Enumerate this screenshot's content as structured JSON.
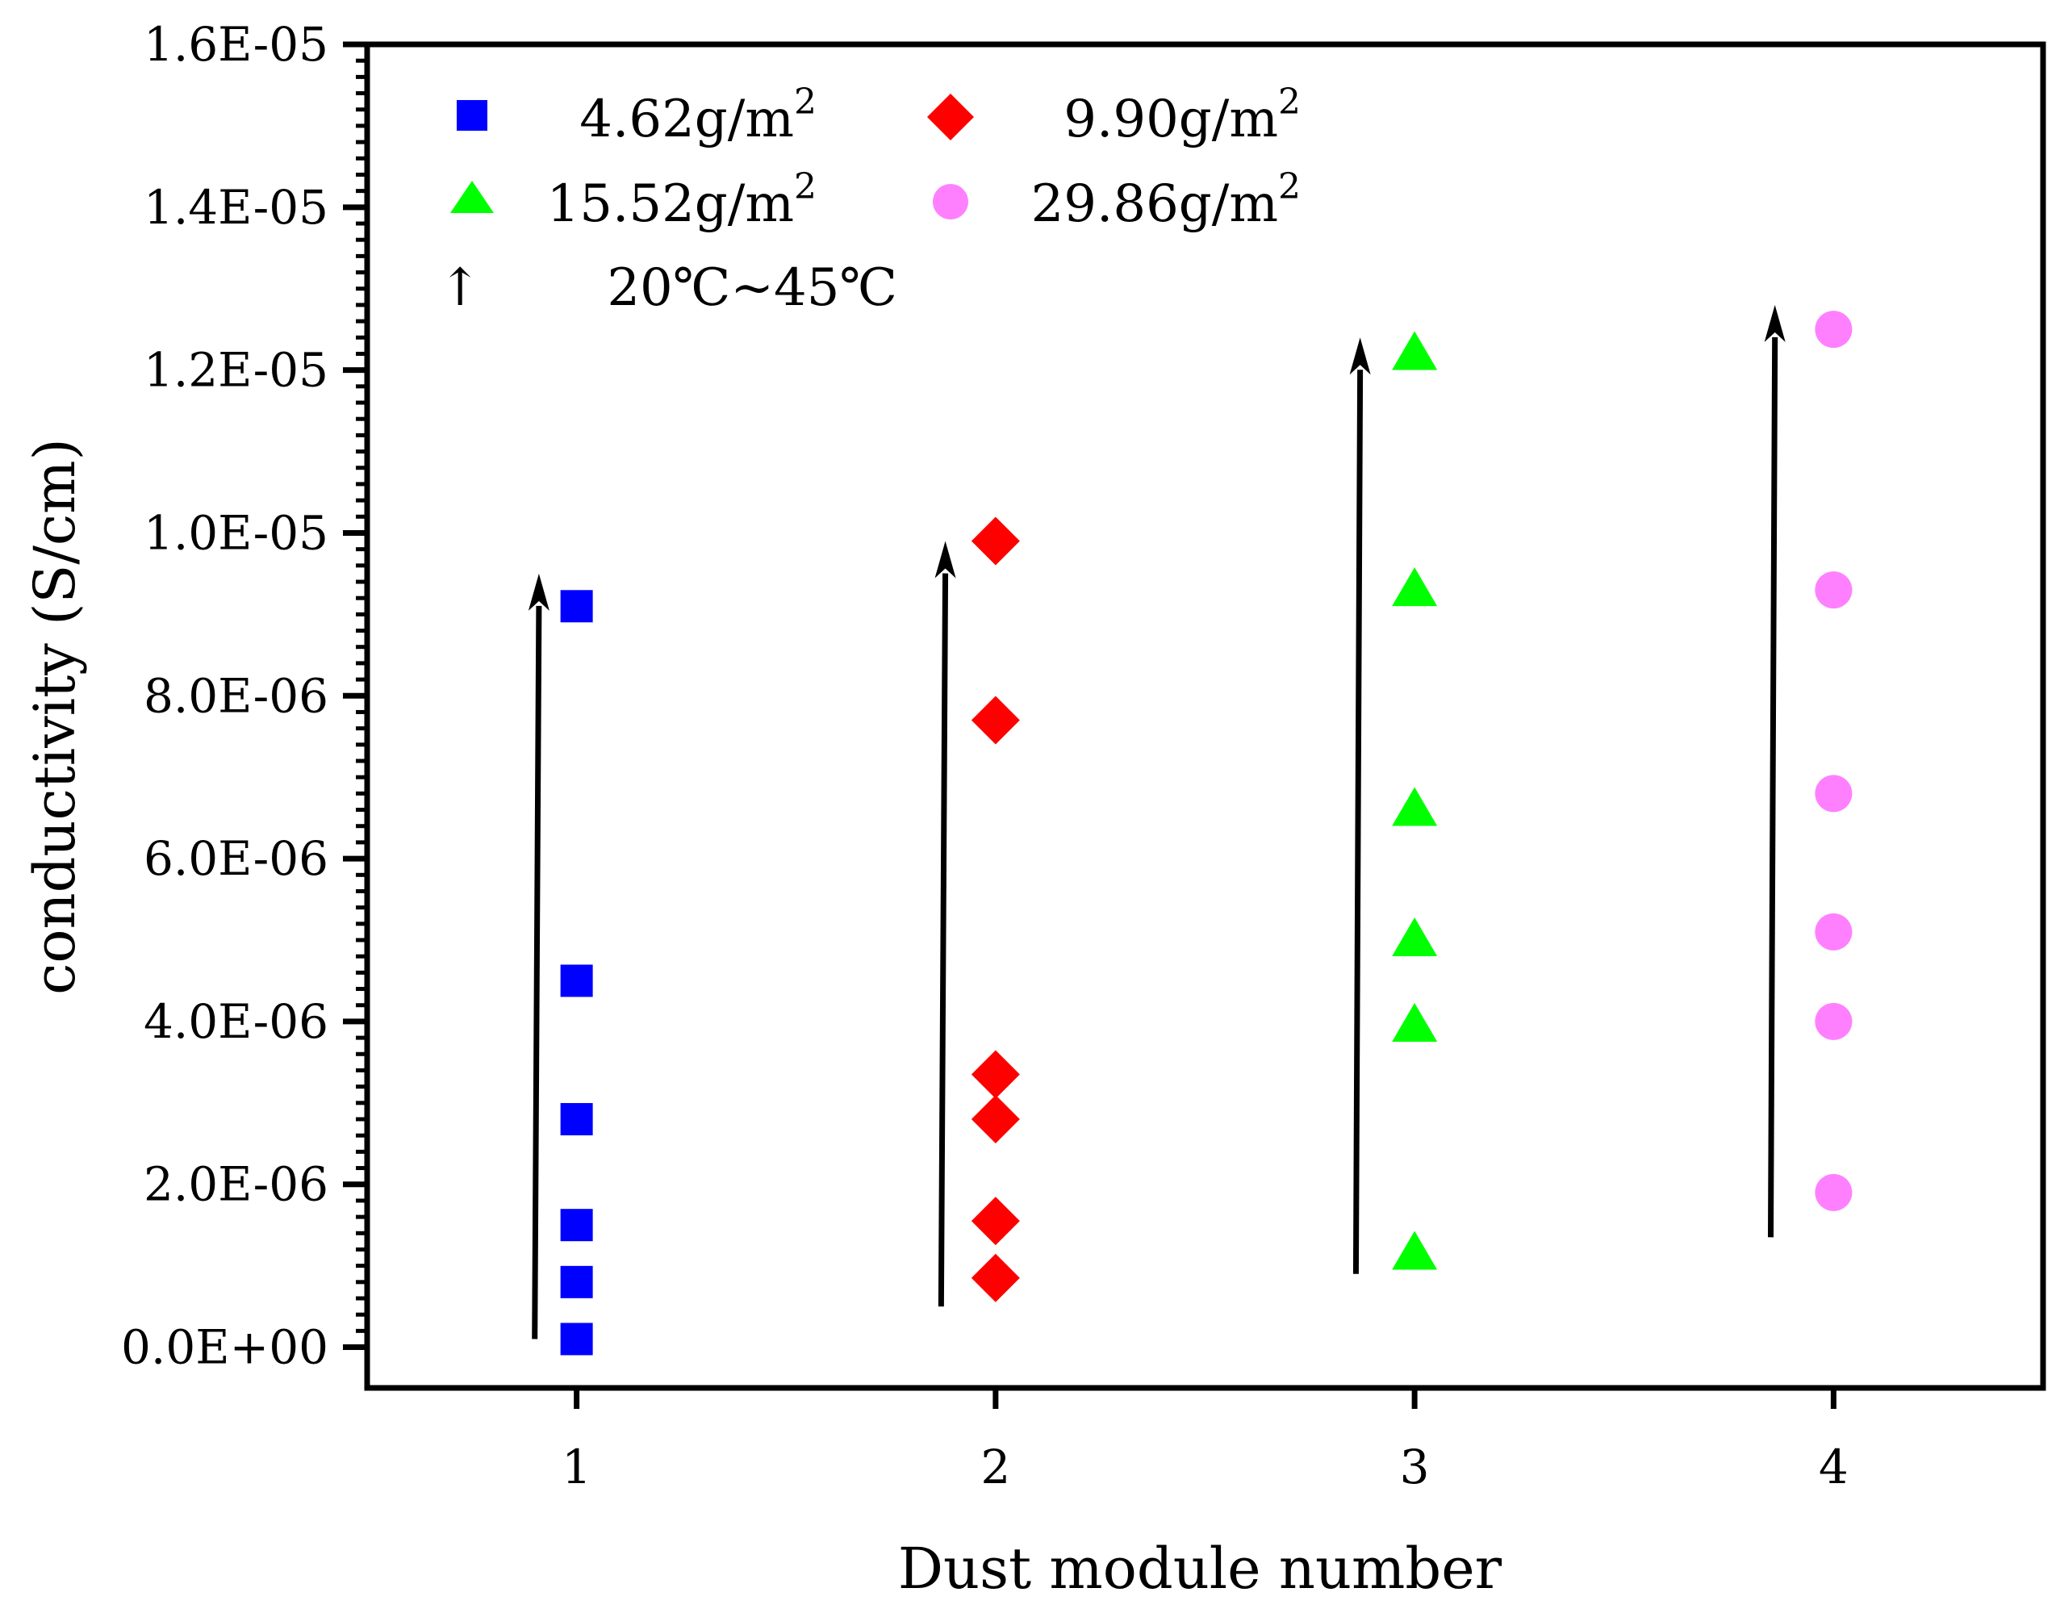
{
  "chart_data": {
    "type": "scatter",
    "title": "",
    "xlabel": "Dust module number",
    "ylabel": "conductivity (S/cm)",
    "xlim": [
      0.5,
      4.5
    ],
    "ylim": [
      -5e-07,
      1.6e-05
    ],
    "xticks": [
      1,
      2,
      3,
      4
    ],
    "xtick_labels": [
      "1",
      "2",
      "3",
      "4"
    ],
    "yticks": [
      0,
      2e-06,
      4e-06,
      6e-06,
      8e-06,
      1e-05,
      1.2e-05,
      1.4e-05,
      1.6e-05
    ],
    "ytick_labels": [
      "0.0E+00",
      "2.0E-06",
      "4.0E-06",
      "6.0E-06",
      "8.0E-06",
      "1.0E-05",
      "1.2E-05",
      "1.4E-05",
      "1.6E-05"
    ],
    "grid": false,
    "legend_position": "top-left",
    "series": [
      {
        "name": "4.62g/m2",
        "label": "4.62g/m",
        "sup": "2",
        "marker": "square",
        "color": "#0000ff",
        "x": [
          1,
          1,
          1,
          1,
          1,
          1
        ],
        "values": [
          9.1e-06,
          4.5e-06,
          2.8e-06,
          1.5e-06,
          8e-07,
          1e-07
        ]
      },
      {
        "name": "9.90g/m2",
        "label": "9.90g/m",
        "sup": "2",
        "marker": "diamond",
        "color": "#ff0000",
        "x": [
          2,
          2,
          2,
          2,
          2,
          2
        ],
        "values": [
          9.9e-06,
          7.7e-06,
          3.35e-06,
          2.8e-06,
          1.55e-06,
          8.5e-07
        ]
      },
      {
        "name": "15.52g/m2",
        "label": "15.52g/m",
        "sup": "2",
        "marker": "triangle",
        "color": "#00ff00",
        "x": [
          3,
          3,
          3,
          3,
          3,
          3
        ],
        "values": [
          1.22e-05,
          9.3e-06,
          6.6e-06,
          5e-06,
          3.95e-06,
          1.15e-06
        ]
      },
      {
        "name": "29.86g/m2",
        "label": "29.86g/m",
        "sup": "2",
        "marker": "circle",
        "color": "#ff80ff",
        "x": [
          4,
          4,
          4,
          4,
          4,
          4
        ],
        "values": [
          1.25e-05,
          9.3e-06,
          6.8e-06,
          5.1e-06,
          4e-06,
          1.9e-06
        ]
      }
    ],
    "temperature_arrows": [
      {
        "x_start": 0.9,
        "y_start": 1e-07,
        "x_end": 0.91,
        "y_end": 9.5e-06
      },
      {
        "x_start": 1.87,
        "y_start": 5e-07,
        "x_end": 1.88,
        "y_end": 9.9e-06
      },
      {
        "x_start": 2.86,
        "y_start": 9e-07,
        "x_end": 2.87,
        "y_end": 1.24e-05
      },
      {
        "x_start": 3.85,
        "y_start": 1.35e-06,
        "x_end": 3.86,
        "y_end": 1.28e-05
      }
    ],
    "arrow_legend": {
      "glyph": "↑",
      "label": "20℃~45℃"
    }
  }
}
